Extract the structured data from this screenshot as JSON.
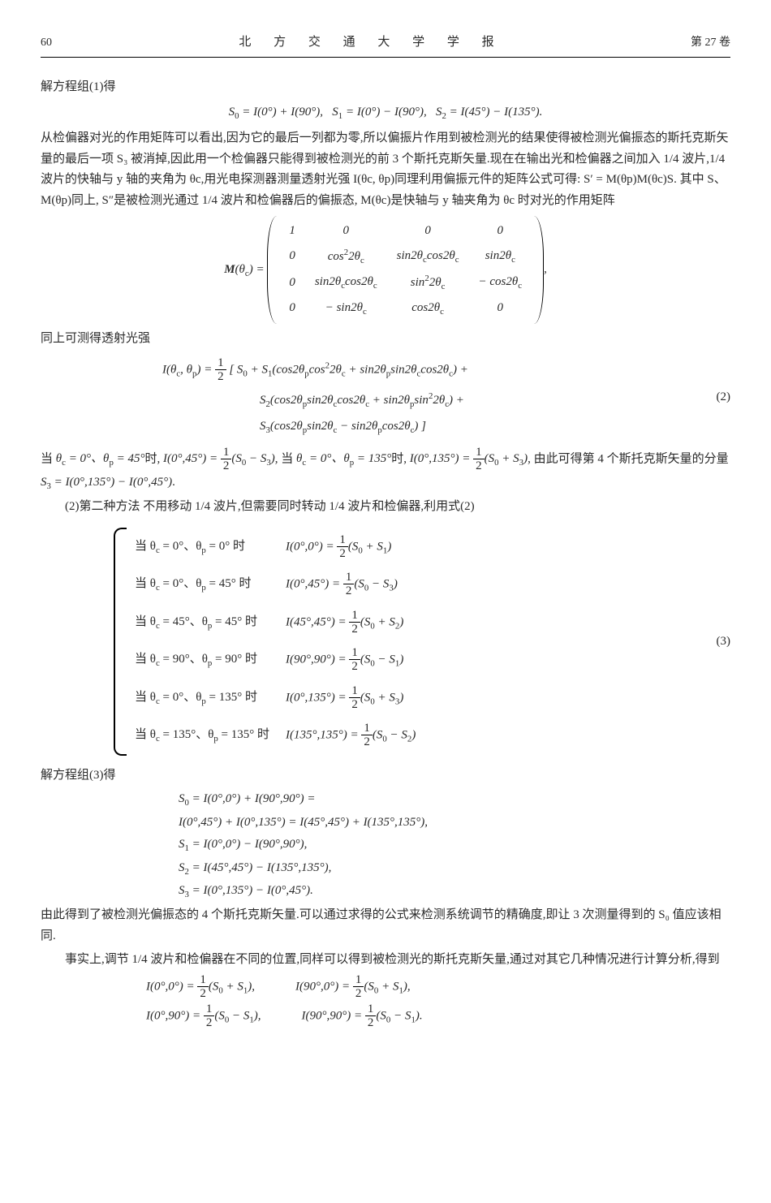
{
  "header": {
    "page_number": "60",
    "journal": "北 方 交 通 大 学 学 报",
    "volume": "第 27 卷"
  },
  "p1": "解方程组(1)得",
  "eq_s_line": "S₀ = I(0°) + I(90°),    S₁ = I(0°) − I(90°),    S₂ = I(45°) − I(135°).",
  "p2": "从检偏器对光的作用矩阵可以看出,因为它的最后一列都为零,所以偏振片作用到被检测光的结果使得被检测光偏振态的斯托克斯矢量的最后一项 S₃ 被消掉,因此用一个检偏器只能得到被检测光的前 3 个斯托克斯矢量.现在在输出光和检偏器之间加入 1/4 波片,1/4 波片的快轴与 y 轴的夹角为 θc,用光电探测器测量透射光强 I(θc, θp)同理利用偏振元件的矩阵公式可得: S′ = M(θp)M(θc)S. 其中 S、M(θp)同上, S″是被检测光通过 1/4 波片和检偏器后的偏振态, M(θc)是快轴与 y 轴夹角为 θc 时对光的作用矩阵",
  "matrix": {
    "lhs": "M(θc) =",
    "rows": [
      [
        "1",
        "0",
        "0",
        "0"
      ],
      [
        "0",
        "cos²2θc",
        "sin2θc cos2θc",
        "sin2θc"
      ],
      [
        "0",
        "sin2θc cos2θc",
        "sin²2θc",
        "− cos2θc"
      ],
      [
        "0",
        "− sin2θc",
        "cos2θc",
        "0"
      ]
    ],
    "tail": ","
  },
  "p3": "同上可测得透射光强",
  "eq2": {
    "l1": "I(θc, θp) = ½ [ S₀ + S₁(cos2θp cos²2θc + sin2θp sin2θc cos2θc) +",
    "l2": "S₂(cos2θp sin2θc cos2θc + sin2θp sin²2θc) +",
    "l3": "S₃(cos2θp sin2θc − sin2θp cos2θc) ]",
    "num": "(2)"
  },
  "p4": "当 θc = 0°、θp = 45°时, I(0°,45°) = ½(S₀ − S₃), 当 θc = 0°、θp = 135°时, I(0°,135°) = ½(S₀ + S₃), 由此可得第 4 个斯托克斯矢量的分量 S₃ = I(0°,135°) − I(0°,45°).",
  "p5": "(2)第二种方法  不用移动 1/4 波片,但需要同时转动 1/4 波片和检偏器,利用式(2)",
  "cases": [
    {
      "c": "当 θc = 0°、θp = 0° 时",
      "r": "I(0°,0°) = ½(S₀ + S₁)"
    },
    {
      "c": "当 θc = 0°、θp = 45° 时",
      "r": "I(0°,45°) = ½(S₀ − S₃)"
    },
    {
      "c": "当 θc = 45°、θp = 45° 时",
      "r": "I(45°,45°) = ½(S₀ + S₂)"
    },
    {
      "c": "当 θc = 90°、θp = 90° 时",
      "r": "I(90°,90°) = ½(S₀ − S₁)"
    },
    {
      "c": "当 θc = 0°、θp = 135° 时",
      "r": "I(0°,135°) = ½(S₀ + S₃)"
    },
    {
      "c": "当 θc = 135°、θp = 135° 时",
      "r": "I(135°,135°) = ½(S₀ − S₂)"
    }
  ],
  "eq3_num": "(3)",
  "p6": "解方程组(3)得",
  "solve": [
    "S₀ = I(0°,0°) + I(90°,90°) =",
    "       I(0°,45°) + I(0°,135°) = I(45°,45°) + I(135°,135°),",
    "S₁ = I(0°,0°) − I(90°,90°),",
    "S₂ = I(45°,45°) − I(135°,135°),",
    "S₃ = I(0°,135°) − I(0°,45°)."
  ],
  "p7": "由此得到了被检测光偏振态的 4 个斯托克斯矢量.可以通过求得的公式来检测系统调节的精确度,即让 3 次测量得到的 S₀ 值应该相同.",
  "p8": "事实上,调节 1/4 波片和检偏器在不同的位置,同样可以得到被检测光的斯托克斯矢量,通过对其它几种情况进行计算分析,得到",
  "pairs": [
    [
      "I(0°,0°) = ½(S₀ + S₁),",
      "I(90°,0°) = ½(S₀ + S₁),"
    ],
    [
      "I(0°,90°) = ½(S₀ − S₁),",
      "I(90°,90°) = ½(S₀ − S₁)."
    ]
  ]
}
